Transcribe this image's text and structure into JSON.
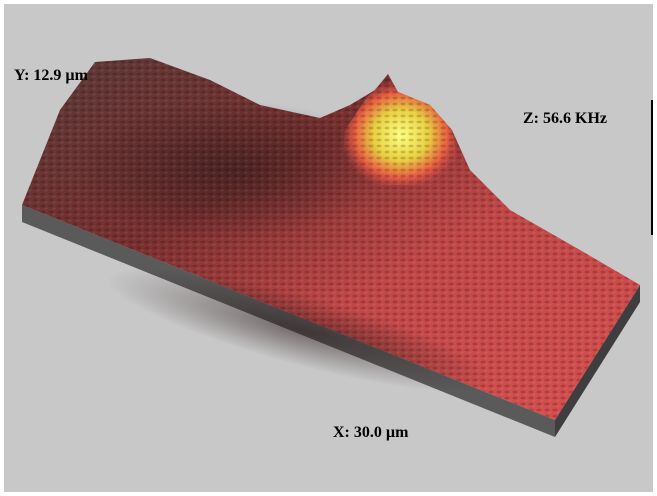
{
  "labels": {
    "y_axis": "Y: 12.9 µm",
    "z_axis": "Z: 56.6 KHz",
    "x_axis": "X: 30.0 µm"
  }
}
